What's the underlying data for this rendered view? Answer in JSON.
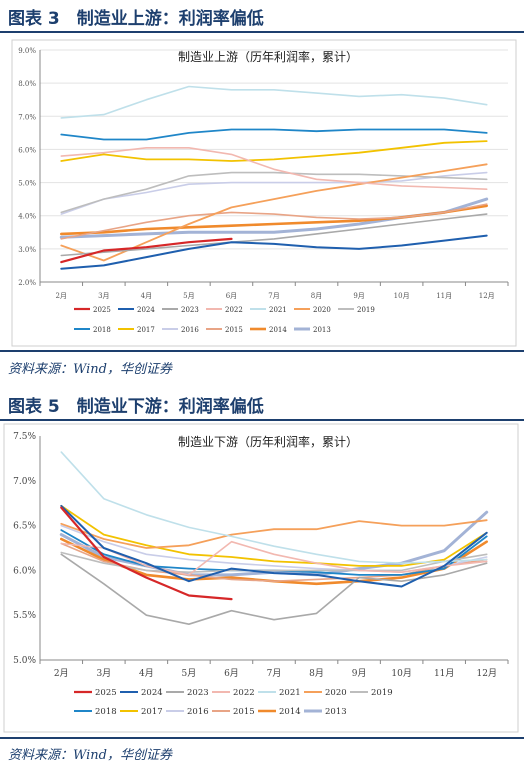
{
  "figures": [
    {
      "header": "图表 3　制造业上游：利润率偏低",
      "source": "资料来源：Wind，华创证券"
    },
    {
      "header": "图表 5　制造业下游：利润率偏低",
      "source": "资料来源：Wind，华创证券"
    }
  ],
  "chart_data": [
    {
      "type": "line",
      "title": "制造业上游（历年利润率，累计）",
      "xlabel": "",
      "ylabel": "",
      "categories": [
        "2月",
        "3月",
        "4月",
        "5月",
        "6月",
        "7月",
        "8月",
        "9月",
        "10月",
        "11月",
        "12月"
      ],
      "y_ticks": [
        "2.0%",
        "3.0%",
        "4.0%",
        "5.0%",
        "6.0%",
        "7.0%",
        "8.0%",
        "9.0%"
      ],
      "ylim": [
        2.0,
        9.0
      ],
      "grid": "horizontal",
      "legend_position": "bottom",
      "series": [
        {
          "name": "2025",
          "color": "#d62728",
          "width": 2.2,
          "values": [
            2.6,
            2.95,
            3.05,
            3.2,
            3.3,
            null,
            null,
            null,
            null,
            null,
            null
          ]
        },
        {
          "name": "2024",
          "color": "#1f5fae",
          "width": 2.0,
          "values": [
            2.4,
            2.5,
            2.75,
            3.0,
            3.2,
            3.15,
            3.05,
            3.0,
            3.1,
            3.25,
            3.4
          ]
        },
        {
          "name": "2023",
          "color": "#a9a9a9",
          "width": 1.6,
          "values": [
            2.8,
            2.9,
            3.0,
            3.1,
            3.2,
            3.3,
            3.45,
            3.6,
            3.75,
            3.9,
            4.05
          ]
        },
        {
          "name": "2022",
          "color": "#f2b8b0",
          "width": 1.6,
          "values": [
            5.8,
            5.9,
            6.05,
            6.05,
            5.85,
            5.4,
            5.1,
            5.0,
            4.9,
            4.85,
            4.8
          ]
        },
        {
          "name": "2021",
          "color": "#bfe0ea",
          "width": 1.6,
          "values": [
            6.95,
            7.05,
            7.5,
            7.9,
            7.8,
            7.8,
            7.7,
            7.6,
            7.65,
            7.55,
            7.35
          ]
        },
        {
          "name": "2020",
          "color": "#f5a05a",
          "width": 1.8,
          "values": [
            3.1,
            2.65,
            3.2,
            3.75,
            4.25,
            4.5,
            4.75,
            4.95,
            5.15,
            5.35,
            5.55
          ]
        },
        {
          "name": "2019",
          "color": "#bdbdbd",
          "width": 1.6,
          "values": [
            4.1,
            4.5,
            4.8,
            5.2,
            5.3,
            5.3,
            5.25,
            5.25,
            5.2,
            5.15,
            5.1
          ]
        },
        {
          "name": "2018",
          "color": "#1f86c8",
          "width": 1.8,
          "values": [
            6.45,
            6.3,
            6.3,
            6.5,
            6.6,
            6.6,
            6.55,
            6.6,
            6.6,
            6.6,
            6.5
          ]
        },
        {
          "name": "2017",
          "color": "#f2c200",
          "width": 1.8,
          "values": [
            5.65,
            5.85,
            5.7,
            5.7,
            5.65,
            5.7,
            5.8,
            5.9,
            6.05,
            6.2,
            6.25
          ]
        },
        {
          "name": "2016",
          "color": "#c9cde8",
          "width": 1.6,
          "values": [
            4.05,
            4.5,
            4.7,
            4.95,
            5.0,
            5.0,
            5.0,
            5.0,
            5.05,
            5.2,
            5.3
          ]
        },
        {
          "name": "2015",
          "color": "#e8a486",
          "width": 1.6,
          "values": [
            3.3,
            3.55,
            3.8,
            4.0,
            4.1,
            4.05,
            3.95,
            3.9,
            3.95,
            4.1,
            4.35
          ]
        },
        {
          "name": "2014",
          "color": "#f08a2c",
          "width": 2.6,
          "values": [
            3.45,
            3.5,
            3.6,
            3.65,
            3.7,
            3.75,
            3.8,
            3.85,
            3.95,
            4.1,
            4.3
          ]
        },
        {
          "name": "2013",
          "color": "#a3b3d6",
          "width": 3.0,
          "values": [
            3.35,
            3.4,
            3.45,
            3.5,
            3.5,
            3.5,
            3.6,
            3.75,
            3.95,
            4.1,
            4.5
          ]
        }
      ]
    },
    {
      "type": "line",
      "title": "制造业下游（历年利润率，累计）",
      "xlabel": "",
      "ylabel": "",
      "categories": [
        "2月",
        "3月",
        "4月",
        "5月",
        "6月",
        "7月",
        "8月",
        "9月",
        "10月",
        "11月",
        "12月"
      ],
      "y_ticks": [
        "5.0%",
        "5.5%",
        "6.0%",
        "6.5%",
        "7.0%",
        "7.5%"
      ],
      "ylim": [
        5.0,
        7.5
      ],
      "grid": "none",
      "legend_position": "bottom",
      "series": [
        {
          "name": "2025",
          "color": "#d62728",
          "width": 2.2,
          "values": [
            6.7,
            6.15,
            5.92,
            5.72,
            5.68,
            null,
            null,
            null,
            null,
            null,
            null
          ]
        },
        {
          "name": "2024",
          "color": "#1f5fae",
          "width": 2.0,
          "values": [
            6.72,
            6.25,
            6.08,
            5.88,
            6.02,
            5.97,
            5.95,
            5.88,
            5.82,
            6.05,
            6.42
          ]
        },
        {
          "name": "2023",
          "color": "#a9a9a9",
          "width": 1.6,
          "values": [
            6.18,
            5.85,
            5.5,
            5.4,
            5.55,
            5.45,
            5.52,
            5.92,
            5.88,
            5.95,
            6.08
          ]
        },
        {
          "name": "2022",
          "color": "#f2b8b0",
          "width": 1.6,
          "values": [
            6.3,
            6.25,
            6.05,
            5.95,
            6.32,
            6.18,
            6.08,
            6.0,
            5.98,
            6.05,
            6.1
          ]
        },
        {
          "name": "2021",
          "color": "#bfe0ea",
          "width": 1.6,
          "values": [
            7.32,
            6.8,
            6.62,
            6.48,
            6.38,
            6.27,
            6.18,
            6.1,
            6.08,
            6.1,
            6.12
          ]
        },
        {
          "name": "2020",
          "color": "#f5a05a",
          "width": 1.8,
          "values": [
            6.52,
            6.35,
            6.25,
            6.28,
            6.4,
            6.46,
            6.46,
            6.55,
            6.5,
            6.5,
            6.56
          ]
        },
        {
          "name": "2019",
          "color": "#bdbdbd",
          "width": 1.6,
          "values": [
            6.2,
            6.08,
            6.0,
            5.98,
            6.0,
            6.0,
            6.0,
            6.0,
            6.0,
            6.1,
            6.18
          ]
        },
        {
          "name": "2018",
          "color": "#1f86c8",
          "width": 1.8,
          "values": [
            6.45,
            6.18,
            6.05,
            6.02,
            6.0,
            6.0,
            5.98,
            5.95,
            5.95,
            6.02,
            6.38
          ]
        },
        {
          "name": "2017",
          "color": "#f2c200",
          "width": 1.8,
          "values": [
            6.72,
            6.4,
            6.28,
            6.18,
            6.15,
            6.1,
            6.08,
            6.05,
            6.05,
            6.12,
            6.42
          ]
        },
        {
          "name": "2016",
          "color": "#c9cde8",
          "width": 1.6,
          "values": [
            6.5,
            6.32,
            6.18,
            6.12,
            6.08,
            6.05,
            6.02,
            6.0,
            5.98,
            6.05,
            6.15
          ]
        },
        {
          "name": "2015",
          "color": "#e8a486",
          "width": 1.6,
          "values": [
            6.3,
            6.1,
            6.0,
            5.95,
            5.9,
            5.88,
            5.9,
            5.92,
            5.95,
            6.05,
            6.12
          ]
        },
        {
          "name": "2014",
          "color": "#f08a2c",
          "width": 2.6,
          "values": [
            6.35,
            6.12,
            5.95,
            5.9,
            5.92,
            5.88,
            5.85,
            5.88,
            5.92,
            6.02,
            6.32
          ]
        },
        {
          "name": "2013",
          "color": "#a3b3d6",
          "width": 3.0,
          "values": [
            6.4,
            6.15,
            6.05,
            5.95,
            5.95,
            5.98,
            5.95,
            6.02,
            6.08,
            6.22,
            6.65
          ]
        }
      ]
    }
  ]
}
